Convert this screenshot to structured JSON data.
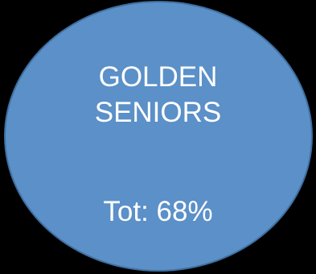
{
  "circle": {
    "title_line1": "GOLDEN",
    "title_line2": "SENIORS",
    "total_text": "Tot: 68%",
    "fill_color": "#5b90c8",
    "border_color": "#3f6fa0",
    "text_color": "#ffffff"
  },
  "background_color": "#000000"
}
